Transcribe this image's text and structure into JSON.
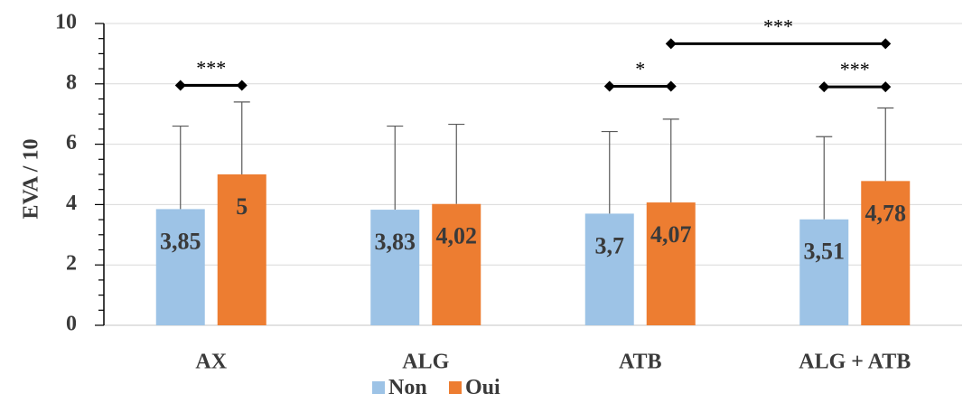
{
  "chart_data": {
    "type": "bar",
    "title": "",
    "xlabel": "",
    "ylabel": "EVA / 10",
    "ylim": [
      0,
      10
    ],
    "yticks": [
      "0",
      "2",
      "4",
      "6",
      "8",
      "10"
    ],
    "grid": true,
    "legend_position": "bottom",
    "categories": [
      "AX",
      "ALG",
      "ATB",
      "ALG + ATB"
    ],
    "series": [
      {
        "name": "Non",
        "color": "#9DC3E6",
        "values": [
          3.85,
          3.83,
          3.7,
          3.51
        ],
        "labels": [
          "3,85",
          "3,83",
          "3,7",
          "3,51"
        ],
        "error_upper": [
          6.6,
          6.6,
          6.42,
          6.25
        ]
      },
      {
        "name": "Oui",
        "color": "#ED7D31",
        "values": [
          5,
          4.02,
          4.07,
          4.78
        ],
        "labels": [
          "5",
          "4,02",
          "4,07",
          "4,78"
        ],
        "error_upper": [
          7.4,
          6.66,
          6.83,
          7.2
        ]
      }
    ],
    "significance": [
      {
        "label": "***",
        "from": [
          0,
          0
        ],
        "to": [
          0,
          1
        ],
        "y": 7.95
      },
      {
        "label": "*",
        "from": [
          2,
          0
        ],
        "to": [
          2,
          1
        ],
        "y": 7.92
      },
      {
        "label": "***",
        "from": [
          2,
          1
        ],
        "to": [
          3,
          1
        ],
        "y": 9.33
      },
      {
        "label": "***",
        "from": [
          3,
          0
        ],
        "to": [
          3,
          1
        ],
        "y": 7.9
      }
    ]
  }
}
